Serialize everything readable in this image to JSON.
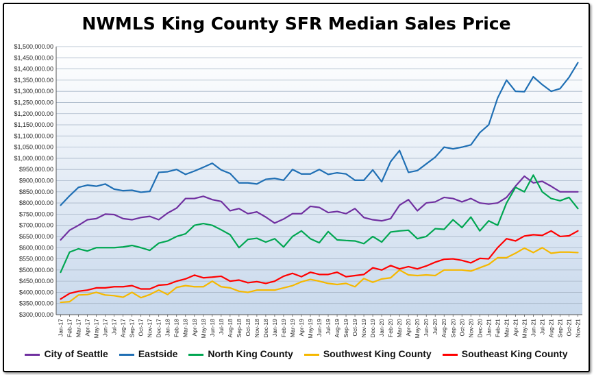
{
  "chart_data": {
    "type": "line",
    "title": "NWMLS King County SFR Median Sales Price",
    "xlabel": "",
    "ylabel": "",
    "ylim": [
      300000,
      1500000
    ],
    "y_step": 50000,
    "grid": true,
    "legend_position": "bottom",
    "categories": [
      "Jan-17",
      "Feb-17",
      "Mar-17",
      "Apr-17",
      "May-17",
      "Jun-17",
      "Jul-17",
      "Aug-17",
      "Sep-17",
      "Oct-17",
      "Nov-17",
      "Dec-17",
      "Jan-18",
      "Feb-18",
      "Mar-18",
      "Apr-18",
      "May-18",
      "Jun-18",
      "Jul-18",
      "Aug-18",
      "Sep-18",
      "Oct-18",
      "Nov-18",
      "Dec-18",
      "Jan-19",
      "Feb-19",
      "Mar-19",
      "Apr-19",
      "May-19",
      "Jun-19",
      "Jul-19",
      "Aug-19",
      "Sep-19",
      "Oct-19",
      "Nov-19",
      "Dec-19",
      "Jan-20",
      "Feb-20",
      "Mar-20",
      "Apr-20",
      "May-20",
      "Jun-20",
      "Jul-20",
      "Aug-20",
      "Sep-20",
      "Oct-20",
      "Nov-20",
      "Dec-20",
      "Jan-21",
      "Feb-21",
      "Mar-21",
      "Apr-21",
      "May-21",
      "Jun-21",
      "Jul-21",
      "Aug-21",
      "Sep-21",
      "Oct-21",
      "Nov-21"
    ],
    "y_tick_labels": [
      "$300,000.00",
      "$350,000.00",
      "$400,000.00",
      "$450,000.00",
      "$500,000.00",
      "$550,000.00",
      "$600,000.00",
      "$650,000.00",
      "$700,000.00",
      "$750,000.00",
      "$800,000.00",
      "$850,000.00",
      "$900,000.00",
      "$950,000.00",
      "$1,000,000.00",
      "$1,050,000.00",
      "$1,100,000.00",
      "$1,150,000.00",
      "$1,200,000.00",
      "$1,250,000.00",
      "$1,300,000.00",
      "$1,350,000.00",
      "$1,400,000.00",
      "$1,450,000.00",
      "$1,500,000.00"
    ],
    "series": [
      {
        "name": "City of Seattle",
        "color": "#7030a0",
        "values": [
          635000,
          678000,
          700000,
          725000,
          730000,
          750000,
          748000,
          730000,
          725000,
          735000,
          740000,
          725000,
          755000,
          777000,
          820000,
          820000,
          830000,
          815000,
          807000,
          765000,
          775000,
          752000,
          760000,
          737000,
          710000,
          728000,
          752000,
          752000,
          785000,
          780000,
          757000,
          762000,
          752000,
          775000,
          735000,
          725000,
          720000,
          730000,
          790000,
          815000,
          765000,
          800000,
          805000,
          825000,
          820000,
          805000,
          820000,
          800000,
          795000,
          800000,
          825000,
          875000,
          920000,
          890000,
          897000,
          875000,
          850000,
          850000,
          850000
        ]
      },
      {
        "name": "Eastside",
        "color": "#1f6fb4",
        "values": [
          790000,
          832000,
          870000,
          880000,
          875000,
          885000,
          862000,
          855000,
          857000,
          848000,
          852000,
          937000,
          940000,
          950000,
          928000,
          943000,
          960000,
          978000,
          948000,
          932000,
          890000,
          890000,
          885000,
          906000,
          910000,
          902000,
          950000,
          930000,
          930000,
          950000,
          928000,
          935000,
          930000,
          902000,
          902000,
          948000,
          895000,
          985000,
          1035000,
          937000,
          945000,
          975000,
          1005000,
          1050000,
          1042000,
          1050000,
          1060000,
          1115000,
          1150000,
          1270000,
          1350000,
          1300000,
          1298000,
          1365000,
          1330000,
          1300000,
          1312000,
          1362000,
          1428000
        ]
      },
      {
        "name": "North King County",
        "color": "#00a651",
        "values": [
          490000,
          580000,
          595000,
          585000,
          600000,
          600000,
          600000,
          603000,
          610000,
          600000,
          588000,
          620000,
          630000,
          650000,
          662000,
          700000,
          708000,
          700000,
          680000,
          658000,
          600000,
          637000,
          642000,
          625000,
          640000,
          603000,
          650000,
          675000,
          640000,
          622000,
          672000,
          635000,
          632000,
          630000,
          618000,
          650000,
          625000,
          670000,
          675000,
          678000,
          640000,
          650000,
          685000,
          682000,
          725000,
          690000,
          737000,
          675000,
          720000,
          700000,
          800000,
          870000,
          850000,
          925000,
          850000,
          820000,
          810000,
          825000,
          775000
        ]
      },
      {
        "name": "Southwest King County",
        "color": "#f5b800",
        "values": [
          355000,
          358000,
          388000,
          390000,
          400000,
          388000,
          385000,
          378000,
          400000,
          376000,
          390000,
          410000,
          390000,
          422000,
          430000,
          425000,
          425000,
          450000,
          425000,
          420000,
          405000,
          400000,
          410000,
          410000,
          410000,
          420000,
          430000,
          447000,
          458000,
          450000,
          440000,
          435000,
          440000,
          425000,
          462000,
          445000,
          460000,
          465000,
          500000,
          478000,
          475000,
          478000,
          475000,
          500000,
          500000,
          500000,
          495000,
          510000,
          525000,
          555000,
          555000,
          575000,
          598000,
          578000,
          600000,
          575000,
          580000,
          580000,
          578000
        ]
      },
      {
        "name": "Southeast King County",
        "color": "#ff0000",
        "values": [
          370000,
          395000,
          405000,
          410000,
          420000,
          420000,
          425000,
          425000,
          430000,
          415000,
          415000,
          432000,
          435000,
          450000,
          460000,
          477000,
          465000,
          468000,
          472000,
          450000,
          455000,
          443000,
          448000,
          440000,
          450000,
          472000,
          485000,
          470000,
          490000,
          480000,
          480000,
          490000,
          470000,
          475000,
          480000,
          510000,
          500000,
          520000,
          505000,
          515000,
          505000,
          518000,
          535000,
          548000,
          550000,
          543000,
          532000,
          552000,
          550000,
          600000,
          640000,
          630000,
          652000,
          658000,
          655000,
          675000,
          650000,
          653000,
          675000
        ]
      }
    ]
  }
}
